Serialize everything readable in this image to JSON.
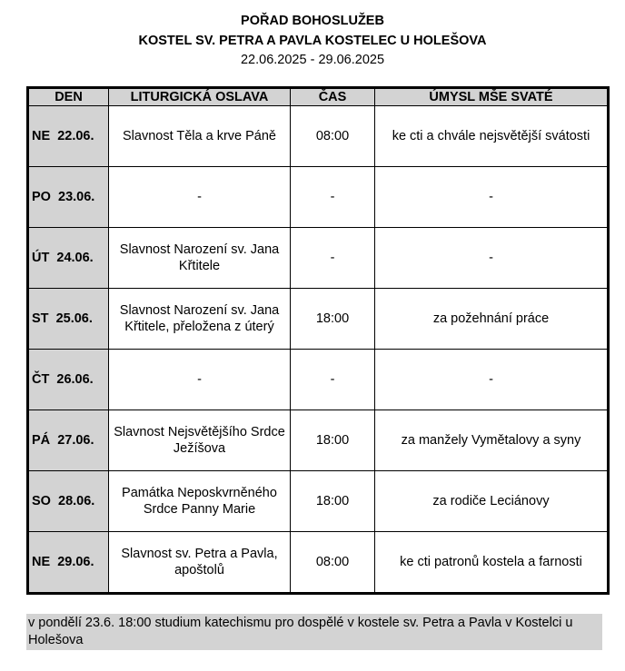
{
  "header": {
    "title": "POŘAD BOHOSLUŽEB",
    "church": "KOSTEL SV. PETRA A PAVLA KOSTELEC U HOLEŠOVA",
    "date_range": "22.06.2025 - 29.06.2025"
  },
  "table": {
    "columns": [
      "DEN",
      "LITURGICKÁ OSLAVA",
      "ČAS",
      "ÚMYSL MŠE SVATÉ"
    ],
    "rows": [
      {
        "day": "NE  22.06.",
        "celebration": "Slavnost Těla a krve Páně",
        "time": "08:00",
        "intention": "ke cti a chvále nejsvětější svátosti"
      },
      {
        "day": "PO  23.06.",
        "celebration": "-",
        "time": "-",
        "intention": "-"
      },
      {
        "day": "ÚT  24.06.",
        "celebration": "Slavnost Narození sv. Jana Křtitele",
        "time": "-",
        "intention": "-"
      },
      {
        "day": "ST  25.06.",
        "celebration": "Slavnost Narození sv. Jana Křtitele, přeložena z úterý",
        "time": "18:00",
        "intention": "za požehnání práce"
      },
      {
        "day": "ČT  26.06.",
        "celebration": "-",
        "time": "-",
        "intention": "-"
      },
      {
        "day": "PÁ  27.06.",
        "celebration": "Slavnost Nejsvětějšího Srdce Ježíšova",
        "time": "18:00",
        "intention": "za manžely Vymětalovy a syny"
      },
      {
        "day": "SO  28.06.",
        "celebration": "Památka Neposkvrněného Srdce Panny Marie",
        "time": "18:00",
        "intention": "za rodiče Leciánovy"
      },
      {
        "day": "NE  29.06.",
        "celebration": "Slavnost sv. Petra a Pavla, apoštolů",
        "time": "08:00",
        "intention": "ke cti patronů kostela a farnosti"
      }
    ]
  },
  "note": "v pondělí 23.6. 18:00 studium katechismu pro dospělé v kostele sv. Petra a Pavla v Kostelci u Holešova",
  "colors": {
    "header_fill": "#d3d3d3",
    "note_fill": "#d3d3d3"
  }
}
